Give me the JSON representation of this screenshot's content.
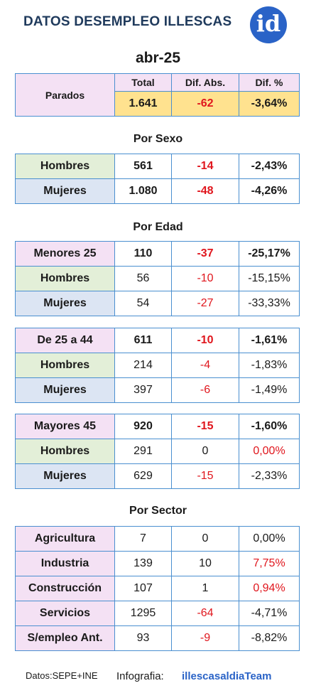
{
  "title": "DATOS DESEMPLEO ILLESCAS",
  "logo_text": "id",
  "period": "abr-25",
  "summary": {
    "label": "Parados",
    "headers": [
      "Total",
      "Dif. Abs.",
      "Dif. %"
    ],
    "total": "1.641",
    "dif_abs": "-62",
    "dif_pct": "-3,64%"
  },
  "sexo": {
    "title": "Por Sexo",
    "rows": [
      {
        "label": "Hombres",
        "total": "561",
        "abs": "-14",
        "pct": "-2,43%"
      },
      {
        "label": "Mujeres",
        "total": "1.080",
        "abs": "-48",
        "pct": "-4,26%"
      }
    ]
  },
  "edad": {
    "title": "Por Edad",
    "groups": [
      {
        "label": "Menores 25",
        "total": "110",
        "abs": "-37",
        "pct": "-25,17%",
        "hombres": {
          "label": "Hombres",
          "total": "56",
          "abs": "-10",
          "pct": "-15,15%"
        },
        "mujeres": {
          "label": "Mujeres",
          "total": "54",
          "abs": "-27",
          "pct": "-33,33%"
        }
      },
      {
        "label": "De 25 a 44",
        "total": "611",
        "abs": "-10",
        "pct": "-1,61%",
        "hombres": {
          "label": "Hombres",
          "total": "214",
          "abs": "-4",
          "pct": "-1,83%"
        },
        "mujeres": {
          "label": "Mujeres",
          "total": "397",
          "abs": "-6",
          "pct": "-1,49%"
        }
      },
      {
        "label": "Mayores 45",
        "total": "920",
        "abs": "-15",
        "pct": "-1,60%",
        "hombres": {
          "label": "Hombres",
          "total": "291",
          "abs": "0",
          "pct": "0,00%"
        },
        "mujeres": {
          "label": "Mujeres",
          "total": "629",
          "abs": "-15",
          "pct": "-2,33%"
        }
      }
    ]
  },
  "sector": {
    "title": "Por Sector",
    "rows": [
      {
        "label": "Agricultura",
        "total": "7",
        "abs": "0",
        "pct": "0,00%"
      },
      {
        "label": "Industria",
        "total": "139",
        "abs": "10",
        "pct": "7,75%"
      },
      {
        "label": "Construcción",
        "total": "107",
        "abs": "1",
        "pct": "0,94%"
      },
      {
        "label": "Servicios",
        "total": "1295",
        "abs": "-64",
        "pct": "-4,71%"
      },
      {
        "label": "S/empleo Ant.",
        "total": "93",
        "abs": "-9",
        "pct": "-8,82%"
      }
    ]
  },
  "footer": {
    "source": "Datos:SEPE+INE",
    "infografia_label": "Infografia:",
    "team": "illescasaldiaTeam"
  },
  "colors": {
    "accent_blue": "#2a63c7",
    "border": "#4a8fd0",
    "negative": "#e0161d",
    "highlight": "#ffe28f"
  }
}
